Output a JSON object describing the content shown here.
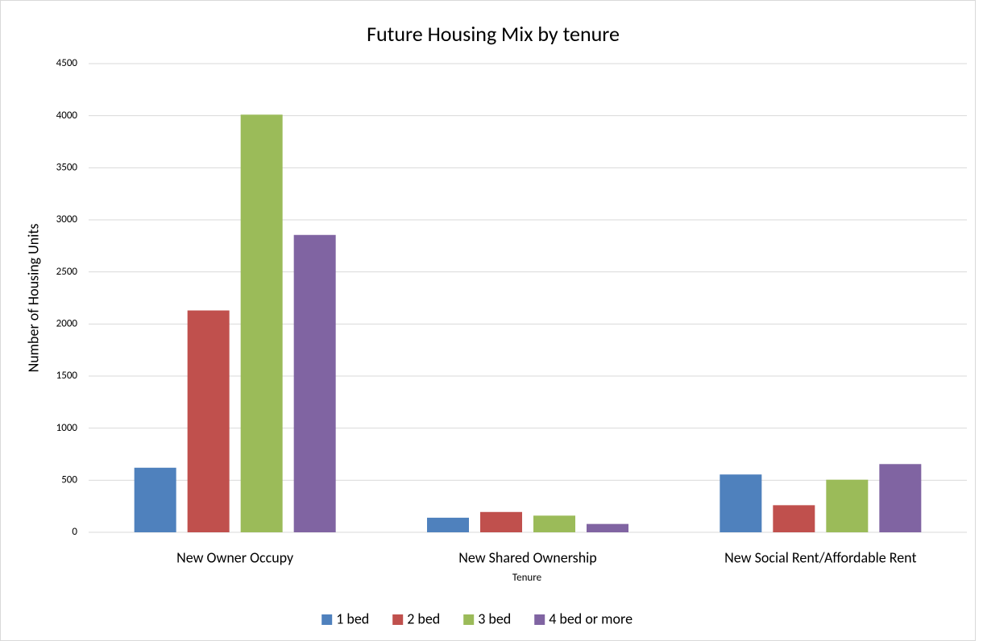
{
  "chart_data": {
    "type": "bar",
    "title": "Future Housing Mix by tenure",
    "x_label": "Tenure",
    "y_label": "Number of Housing Units",
    "categories": [
      "New Owner Occupy",
      "New Shared Ownership",
      "New Social Rent/Affordable Rent"
    ],
    "series": [
      {
        "name": "1 bed",
        "color": "#4f81bd",
        "values": [
          620,
          140,
          555
        ]
      },
      {
        "name": "2 bed",
        "color": "#c0504d",
        "values": [
          2130,
          195,
          260
        ]
      },
      {
        "name": "3 bed",
        "color": "#9bbb59",
        "values": [
          4010,
          160,
          505
        ]
      },
      {
        "name": "4 bed or more",
        "color": "#8064a2",
        "values": [
          2855,
          80,
          655
        ]
      }
    ],
    "ylim": [
      0,
      4500
    ],
    "yticks": [
      0,
      500,
      1000,
      1500,
      2000,
      2500,
      3000,
      3500,
      4000,
      4500
    ],
    "grid": true,
    "legend": "bottom"
  }
}
